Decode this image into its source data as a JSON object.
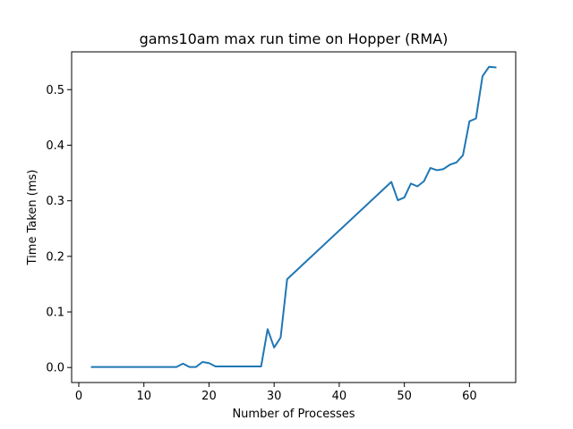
{
  "chart_data": {
    "type": "line",
    "title": "gams10am max run time on Hopper (RMA)",
    "xlabel": "Number of Processes",
    "ylabel": "Time Taken (ms)",
    "xlim": [
      -1.1,
      67.1
    ],
    "ylim": [
      -0.027,
      0.568
    ],
    "xticks": [
      0,
      10,
      20,
      30,
      40,
      50,
      60
    ],
    "yticks": [
      0.0,
      0.1,
      0.2,
      0.3,
      0.4,
      0.5
    ],
    "ytick_labels": [
      "0.0",
      "0.1",
      "0.2",
      "0.3",
      "0.4",
      "0.5"
    ],
    "grid": false,
    "series": [
      {
        "color": "#1f77b4",
        "x": [
          2,
          15,
          16,
          17,
          18,
          19,
          20,
          21,
          28,
          29,
          30,
          31,
          32,
          48,
          49,
          50,
          51,
          52,
          53,
          54,
          55,
          56,
          57,
          58,
          59,
          60,
          61,
          62,
          63,
          64
        ],
        "y": [
          0.001,
          0.001,
          0.007,
          0.001,
          0.001,
          0.01,
          0.008,
          0.002,
          0.002,
          0.069,
          0.036,
          0.054,
          0.159,
          0.334,
          0.301,
          0.306,
          0.331,
          0.326,
          0.335,
          0.359,
          0.355,
          0.357,
          0.365,
          0.369,
          0.382,
          0.443,
          0.448,
          0.524,
          0.541,
          0.54
        ]
      }
    ]
  }
}
